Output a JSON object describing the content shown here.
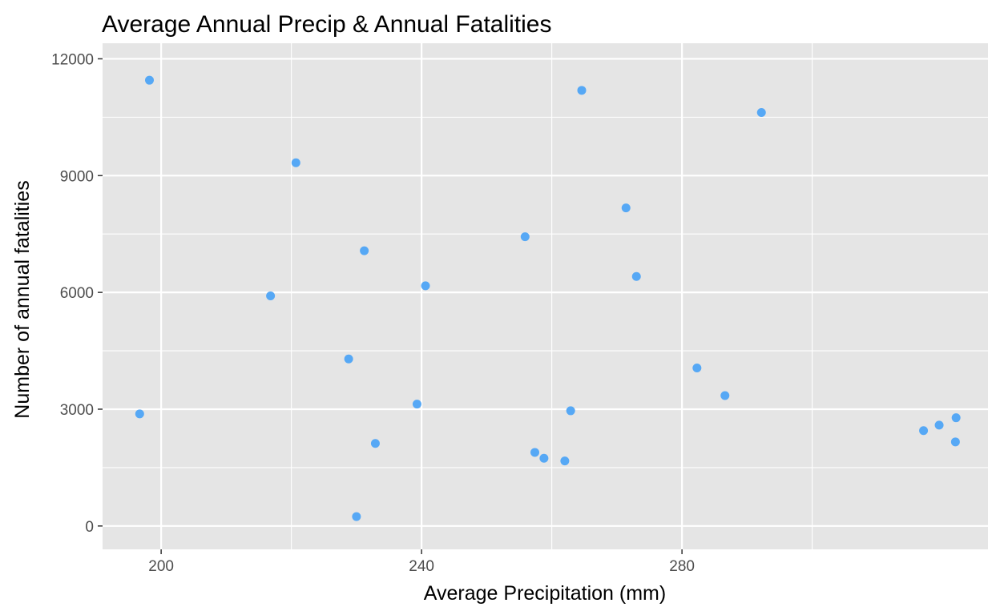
{
  "chart_data": {
    "type": "scatter",
    "title": "Average Annual Precip & Annual Fatalities",
    "xlabel": "Average Precipitation (mm)",
    "ylabel": "Number of annual fatalities",
    "xlim": [
      191,
      327
    ],
    "ylim": [
      -600,
      12400
    ],
    "x_ticks": [
      200,
      240,
      280
    ],
    "y_ticks": [
      0,
      3000,
      6000,
      9000,
      12000
    ],
    "grid": true,
    "legend": "none",
    "colors": {
      "panel": "#e5e5e5",
      "grid": "#ffffff",
      "point": "#56a8f5",
      "tick": "#333333",
      "tick_label": "#4d4d4d"
    },
    "points": [
      {
        "x": 198.2,
        "y": 11450
      },
      {
        "x": 196.7,
        "y": 2880
      },
      {
        "x": 216.8,
        "y": 5910
      },
      {
        "x": 220.7,
        "y": 9330
      },
      {
        "x": 228.8,
        "y": 4290
      },
      {
        "x": 230.0,
        "y": 240
      },
      {
        "x": 231.2,
        "y": 7070
      },
      {
        "x": 232.9,
        "y": 2120
      },
      {
        "x": 239.3,
        "y": 3130
      },
      {
        "x": 240.6,
        "y": 6170
      },
      {
        "x": 255.9,
        "y": 7430
      },
      {
        "x": 257.4,
        "y": 1890
      },
      {
        "x": 258.8,
        "y": 1740
      },
      {
        "x": 262.0,
        "y": 1670
      },
      {
        "x": 262.9,
        "y": 2960
      },
      {
        "x": 264.6,
        "y": 11190
      },
      {
        "x": 271.4,
        "y": 8170
      },
      {
        "x": 273.0,
        "y": 6410
      },
      {
        "x": 282.3,
        "y": 4060
      },
      {
        "x": 286.6,
        "y": 3350
      },
      {
        "x": 292.2,
        "y": 10620
      },
      {
        "x": 317.1,
        "y": 2450
      },
      {
        "x": 319.5,
        "y": 2590
      },
      {
        "x": 322.0,
        "y": 2160
      },
      {
        "x": 322.1,
        "y": 2780
      }
    ]
  }
}
